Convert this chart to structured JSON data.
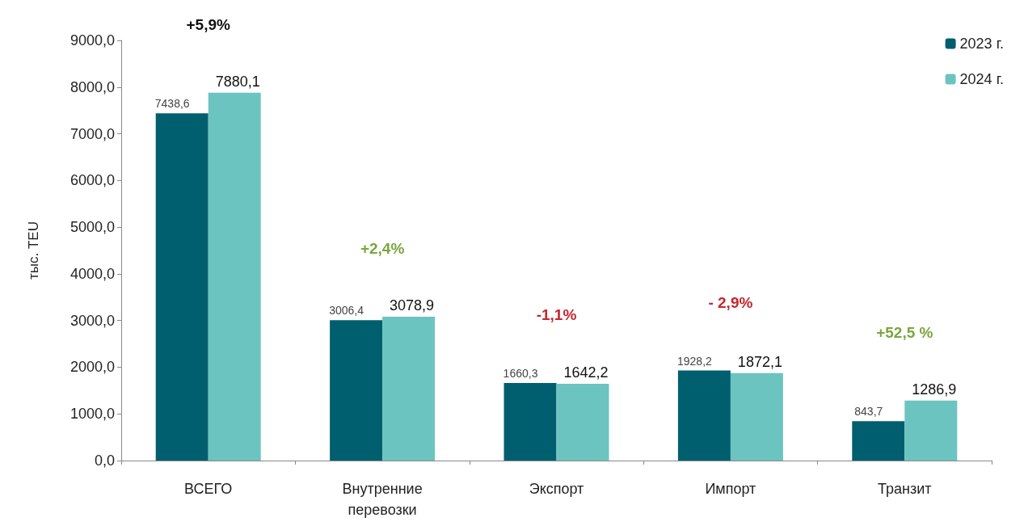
{
  "chart_data": {
    "type": "bar",
    "ylabel": "тыс. TEU",
    "categories": [
      "ВСЕГО",
      "Внутренние\nперевозки",
      "Экспорт",
      "Импорт",
      "Транзит"
    ],
    "series": [
      {
        "name": "2023 г.",
        "color": "#005f6e",
        "values": [
          7438.6,
          3006.4,
          1660.3,
          1928.2,
          843.7
        ],
        "value_labels": [
          "7438,6",
          "3006,4",
          "1660,3",
          "1928,2",
          "843,7"
        ]
      },
      {
        "name": "2024 г.",
        "color": "#6cc4c0",
        "values": [
          7880.1,
          3078.9,
          1642.2,
          1872.1,
          1286.9
        ],
        "value_labels": [
          "7880,1",
          "3078,9",
          "1642,2",
          "1872,1",
          "1286,9"
        ]
      }
    ],
    "ylim": [
      0,
      9000
    ],
    "yticks": [
      {
        "value": 0,
        "label": "0,0"
      },
      {
        "value": 1000,
        "label": "1000,0"
      },
      {
        "value": 2000,
        "label": "2000,0"
      },
      {
        "value": 3000,
        "label": "3000,0"
      },
      {
        "value": 4000,
        "label": "4000,0"
      },
      {
        "value": 5000,
        "label": "5000,0"
      },
      {
        "value": 6000,
        "label": "6000,0"
      },
      {
        "value": 7000,
        "label": "7000,0"
      },
      {
        "value": 8000,
        "label": "8000,0"
      },
      {
        "value": 9000,
        "label": "9000,0"
      }
    ],
    "annotations": [
      "+5,9%",
      "+2,4%",
      "-1,1%",
      "- 2,9%",
      "+52,5 %"
    ],
    "grid": false,
    "legend": "top right"
  }
}
